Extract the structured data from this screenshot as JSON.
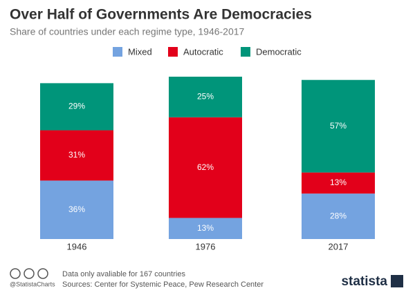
{
  "chart_data": {
    "type": "stacked-bar",
    "title": "Over Half of Governments Are Democracies",
    "subtitle": "Share of countries under each regime type, 1946-2017",
    "categories": [
      "1946",
      "1976",
      "2017"
    ],
    "series": [
      {
        "name": "Mixed",
        "color": "#74a3e0",
        "values": [
          36,
          13,
          28
        ],
        "value_labels": [
          "36%",
          "13%",
          "28%"
        ]
      },
      {
        "name": "Autocratic",
        "color": "#e2001a",
        "values": [
          31,
          62,
          13
        ],
        "value_labels": [
          "31%",
          "62%",
          "13%"
        ]
      },
      {
        "name": "Democratic",
        "color": "#00957a",
        "values": [
          29,
          25,
          57
        ],
        "value_labels": [
          "29%",
          "25%",
          "57%"
        ]
      }
    ]
  },
  "footer": {
    "note": "Data only avaliable for 167 countries",
    "sources": "Sources: Center for Systemic Peace, Pew Research Center",
    "handle": "@StatistaCharts",
    "brand": "statista"
  }
}
